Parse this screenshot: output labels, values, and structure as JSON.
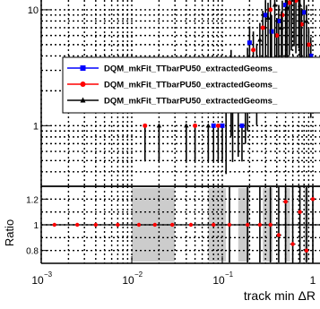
{
  "chart_data": [
    {
      "type": "scatter",
      "panel": "main",
      "xscale": "log",
      "yscale": "log",
      "xlim": [
        0.001,
        1.2
      ],
      "ylim": [
        0.3,
        14
      ],
      "grid": true,
      "yticks": [
        {
          "value": 10,
          "label": "10"
        },
        {
          "value": 1,
          "label": "1"
        }
      ],
      "legend": {
        "placement": "top-right",
        "entries": [
          {
            "label": "DQM_mkFit_TTbarPU50_extractedGeoms_",
            "color": "#0000ff",
            "marker": "square"
          },
          {
            "label": "DQM_mkFit_TTbarPU50_extractedGeoms_",
            "color": "#ff0000",
            "marker": "circle"
          },
          {
            "label": "DQM_mkFit_TTbarPU50_extractedGeoms_",
            "color": "#000000",
            "marker": "triangle"
          }
        ]
      },
      "series": [
        {
          "color": "#0000ff",
          "marker": "square",
          "points": [
            {
              "x": 0.08,
              "y": 1.0,
              "err": 0.0
            },
            {
              "x": 0.1,
              "y": 1.0,
              "err": 0.0
            },
            {
              "x": 0.125,
              "y": 3.0,
              "err": 1.5
            },
            {
              "x": 0.165,
              "y": 1.0,
              "err": 0.0
            },
            {
              "x": 0.2,
              "y": 5.2,
              "err": 2.0
            },
            {
              "x": 0.24,
              "y": 3.5,
              "err": 1.6
            },
            {
              "x": 0.3,
              "y": 9.0,
              "err": 3.0
            },
            {
              "x": 0.35,
              "y": 6.5,
              "err": 2.5
            },
            {
              "x": 0.42,
              "y": 8.0,
              "err": 3.0
            },
            {
              "x": 0.5,
              "y": 11.0,
              "err": 3.5
            },
            {
              "x": 0.58,
              "y": 12.5,
              "err": 3.8
            },
            {
              "x": 0.7,
              "y": 13.0,
              "err": 4.0
            },
            {
              "x": 0.8,
              "y": 9.5,
              "err": 3.2
            },
            {
              "x": 0.95,
              "y": 4.0,
              "err": 1.8
            }
          ]
        },
        {
          "color": "#ff0000",
          "marker": "circle",
          "points": [
            {
              "x": 0.014,
              "y": 1.0,
              "err": 0.0
            },
            {
              "x": 0.05,
              "y": 1.0,
              "err": 0.0
            },
            {
              "x": 0.09,
              "y": 1.0,
              "err": 0.0
            },
            {
              "x": 0.13,
              "y": 1.8,
              "err": 0.9
            },
            {
              "x": 0.18,
              "y": 2.5,
              "err": 1.2
            },
            {
              "x": 0.22,
              "y": 4.5,
              "err": 2.0
            },
            {
              "x": 0.28,
              "y": 7.0,
              "err": 2.8
            },
            {
              "x": 0.34,
              "y": 10.0,
              "err": 3.2
            },
            {
              "x": 0.4,
              "y": 6.0,
              "err": 2.5
            },
            {
              "x": 0.46,
              "y": 9.0,
              "err": 3.0
            },
            {
              "x": 0.55,
              "y": 11.5,
              "err": 3.6
            },
            {
              "x": 0.65,
              "y": 12.0,
              "err": 3.8
            },
            {
              "x": 0.75,
              "y": 7.5,
              "err": 2.8
            },
            {
              "x": 0.9,
              "y": 5.0,
              "err": 2.0
            }
          ]
        },
        {
          "color": "#000000",
          "marker": "triangle",
          "points": [
            {
              "x": 0.02,
              "y": 1.0,
              "err": 0.0
            },
            {
              "x": 0.04,
              "y": 1.0,
              "err": 0.0
            },
            {
              "x": 0.07,
              "y": 1.0,
              "err": 0.0
            },
            {
              "x": 0.11,
              "y": 1.5,
              "err": 0.8
            },
            {
              "x": 0.15,
              "y": 2.0,
              "err": 1.0
            },
            {
              "x": 0.19,
              "y": 3.2,
              "err": 1.5
            },
            {
              "x": 0.26,
              "y": 5.5,
              "err": 2.2
            },
            {
              "x": 0.32,
              "y": 8.5,
              "err": 3.0
            },
            {
              "x": 0.38,
              "y": 11.0,
              "err": 3.5
            },
            {
              "x": 0.45,
              "y": 7.0,
              "err": 2.7
            },
            {
              "x": 0.52,
              "y": 10.5,
              "err": 3.4
            },
            {
              "x": 0.62,
              "y": 13.5,
              "err": 4.0
            },
            {
              "x": 0.72,
              "y": 11.0,
              "err": 3.5
            },
            {
              "x": 0.85,
              "y": 8.0,
              "err": 3.0
            }
          ]
        }
      ]
    },
    {
      "type": "scatter",
      "panel": "ratio",
      "xscale": "log",
      "yscale": "linear",
      "xlim": [
        0.001,
        1.2
      ],
      "ylim": [
        0.7,
        1.3
      ],
      "grid": true,
      "ylabel": "Ratio",
      "xlabel": "track min ΔR",
      "xticks": [
        {
          "value": 0.001,
          "base": "10",
          "exp": "−3"
        },
        {
          "value": 0.01,
          "base": "10",
          "exp": "−2"
        },
        {
          "value": 0.1,
          "base": "10",
          "exp": "−1"
        },
        {
          "value": 1,
          "base": "1",
          "exp": ""
        }
      ],
      "yticks": [
        {
          "value": 1.2,
          "label": "1.2"
        },
        {
          "value": 1,
          "label": "1"
        },
        {
          "value": 0.8,
          "label": "0.8"
        }
      ],
      "error_bands": [
        {
          "x0": 0.01,
          "x1": 0.03
        },
        {
          "x0": 0.07,
          "x1": 0.11
        },
        {
          "x0": 0.15,
          "x1": 0.2
        },
        {
          "x0": 0.28,
          "x1": 0.36
        },
        {
          "x0": 0.5,
          "x1": 0.56
        },
        {
          "x0": 0.8,
          "x1": 0.9
        }
      ],
      "series": [
        {
          "color": "#ff0000",
          "marker": "circle",
          "points": [
            {
              "x": 0.0014,
              "y": 1.0
            },
            {
              "x": 0.0025,
              "y": 1.0
            },
            {
              "x": 0.004,
              "y": 1.0
            },
            {
              "x": 0.007,
              "y": 1.0
            },
            {
              "x": 0.012,
              "y": 1.0
            },
            {
              "x": 0.018,
              "y": 1.0
            },
            {
              "x": 0.028,
              "y": 1.0
            },
            {
              "x": 0.045,
              "y": 1.0
            },
            {
              "x": 0.08,
              "y": 1.0
            },
            {
              "x": 0.12,
              "y": 1.0
            },
            {
              "x": 0.19,
              "y": 1.0
            },
            {
              "x": 0.26,
              "y": 1.0
            },
            {
              "x": 0.34,
              "y": 1.0
            },
            {
              "x": 0.42,
              "y": 0.92
            },
            {
              "x": 0.5,
              "y": 1.18
            },
            {
              "x": 0.6,
              "y": 0.85
            },
            {
              "x": 0.72,
              "y": 1.1
            },
            {
              "x": 0.85,
              "y": 0.8
            },
            {
              "x": 1.0,
              "y": 1.2
            }
          ]
        }
      ]
    }
  ]
}
